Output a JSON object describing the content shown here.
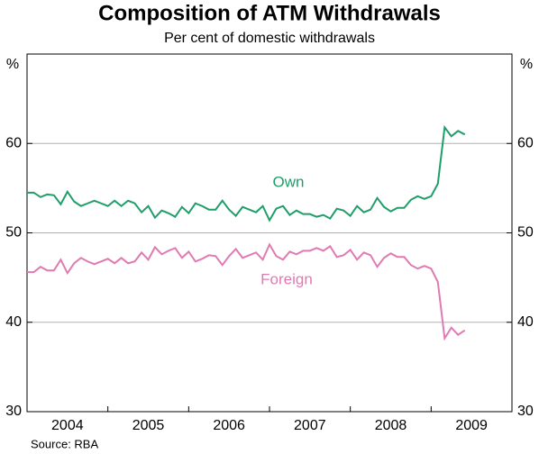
{
  "chart_data": {
    "type": "line",
    "title": "Composition of ATM Withdrawals",
    "subtitle": "Per cent of domestic withdrawals",
    "y_unit": "%",
    "source": "Source: RBA",
    "x": [
      2004.0,
      2004.083,
      2004.167,
      2004.25,
      2004.333,
      2004.417,
      2004.5,
      2004.583,
      2004.667,
      2004.75,
      2004.833,
      2004.917,
      2005.0,
      2005.083,
      2005.167,
      2005.25,
      2005.333,
      2005.417,
      2005.5,
      2005.583,
      2005.667,
      2005.75,
      2005.833,
      2005.917,
      2006.0,
      2006.083,
      2006.167,
      2006.25,
      2006.333,
      2006.417,
      2006.5,
      2006.583,
      2006.667,
      2006.75,
      2006.833,
      2006.917,
      2007.0,
      2007.083,
      2007.167,
      2007.25,
      2007.333,
      2007.417,
      2007.5,
      2007.583,
      2007.667,
      2007.75,
      2007.833,
      2007.917,
      2008.0,
      2008.083,
      2008.167,
      2008.25,
      2008.333,
      2008.417,
      2008.5,
      2008.583,
      2008.667,
      2008.75,
      2008.833,
      2008.917,
      2009.0,
      2009.083,
      2009.167,
      2009.25,
      2009.333,
      2009.417
    ],
    "xlim": [
      2004,
      2010
    ],
    "xticks": [
      {
        "value": 2004.5,
        "label": "2004"
      },
      {
        "value": 2005.5,
        "label": "2005"
      },
      {
        "value": 2006.5,
        "label": "2006"
      },
      {
        "value": 2007.5,
        "label": "2007"
      },
      {
        "value": 2008.5,
        "label": "2008"
      },
      {
        "value": 2009.5,
        "label": "2009"
      }
    ],
    "ylim": [
      30,
      70
    ],
    "yticks": [
      30,
      40,
      50,
      60
    ],
    "grid": true,
    "series": [
      {
        "name": "Own",
        "color": "#1f9e6a",
        "values": [
          54.5,
          54.5,
          54.0,
          54.3,
          54.2,
          53.2,
          54.6,
          53.5,
          53.0,
          53.3,
          53.6,
          53.3,
          53.0,
          53.6,
          53.0,
          53.6,
          53.3,
          52.3,
          53.0,
          51.7,
          52.5,
          52.2,
          51.8,
          52.9,
          52.2,
          53.3,
          53.0,
          52.6,
          52.6,
          53.6,
          52.6,
          51.9,
          52.9,
          52.6,
          52.3,
          53.0,
          51.4,
          52.7,
          53.0,
          52.0,
          52.5,
          52.1,
          52.1,
          51.8,
          52.0,
          51.6,
          52.7,
          52.5,
          51.9,
          53.0,
          52.3,
          52.6,
          53.9,
          52.9,
          52.4,
          52.8,
          52.8,
          53.7,
          54.1,
          53.8,
          54.1,
          55.5,
          61.8,
          60.8,
          61.4,
          61.0
        ]
      },
      {
        "name": "Foreign",
        "color": "#e07ab2",
        "values": [
          45.6,
          45.6,
          46.2,
          45.8,
          45.8,
          47.0,
          45.5,
          46.6,
          47.2,
          46.8,
          46.5,
          46.8,
          47.1,
          46.6,
          47.2,
          46.6,
          46.8,
          47.8,
          47.0,
          48.4,
          47.6,
          48.0,
          48.3,
          47.2,
          47.9,
          46.8,
          47.1,
          47.5,
          47.4,
          46.4,
          47.4,
          48.2,
          47.2,
          47.5,
          47.8,
          47.0,
          48.7,
          47.4,
          47.0,
          47.9,
          47.6,
          48.0,
          48.0,
          48.3,
          48.0,
          48.5,
          47.3,
          47.5,
          48.1,
          47.0,
          47.8,
          47.5,
          46.2,
          47.2,
          47.7,
          47.3,
          47.3,
          46.4,
          46.0,
          46.3,
          46.0,
          44.5,
          38.2,
          39.4,
          38.6,
          39.1
        ]
      }
    ]
  }
}
